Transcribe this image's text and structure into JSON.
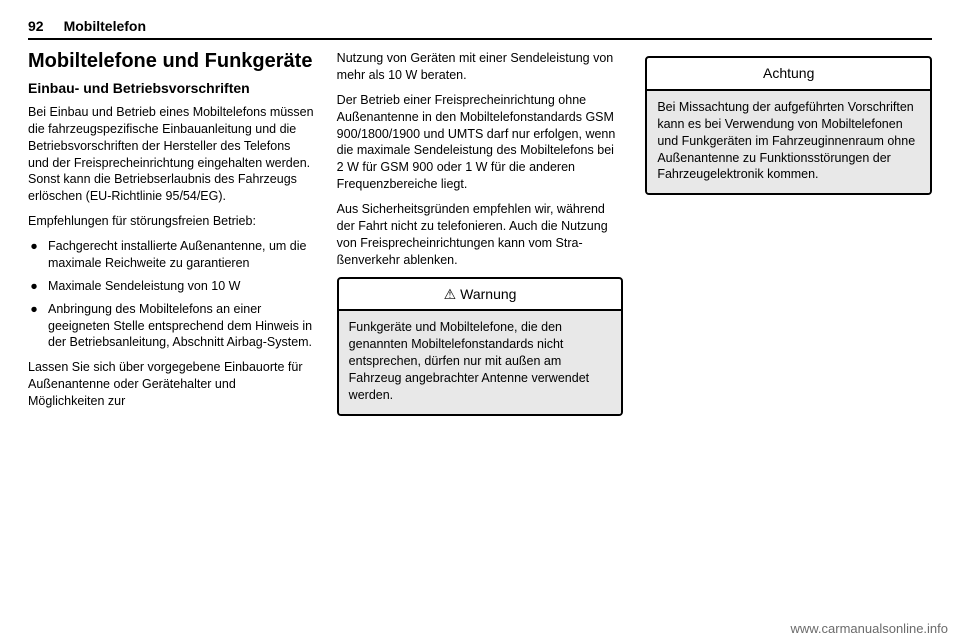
{
  "header": {
    "page_number": "92",
    "section": "Mobiltelefon"
  },
  "col1": {
    "title": "Mobiltelefone und Funkgeräte",
    "subtitle": "Einbau- und Betriebsvorschriften",
    "p1": "Bei Einbau und Betrieb eines Mobil­telefons müssen die fahrzeugspezifi­sche Einbauanleitung und die Betriebsvorschriften der Hersteller des Telefons und der Freisprechein­richtung eingehalten werden. Sonst kann die Betriebserlaubnis des Fahr­zeugs erlöschen (EU-Richtlinie 95/54/EG).",
    "p2": "Empfehlungen für störungsfreien Betrieb:",
    "bullets": [
      "Fachgerecht installierte Außen­antenne, um die maximale Reichweite zu garantieren",
      "Maximale Sendeleistung von 10 W",
      "Anbringung des Mobiltelefons an einer geeigneten Stelle entspre­chend dem Hinweis in der Betriebsanleitung, Abschnitt Airbag-System."
    ],
    "p3": "Lassen Sie sich über vorgegebene Einbauorte für Außenantenne oder Gerätehalter und Möglichkeiten zur"
  },
  "col2": {
    "p1": "Nutzung von Geräten mit einer Sendeleistung von mehr als 10 W beraten.",
    "p2": "Der Betrieb einer Freisprecheinrich­tung ohne Außenantenne in den Mobiltelefonstandards GSM 900/1800/1900 und UMTS darf nur erfolgen, wenn die maximale Sende­leistung des Mobiltelefons bei 2 W für GSM 900 oder 1 W für die anderen Frequenzbereiche liegt.",
    "p3": "Aus Sicherheitsgründen empfehlen wir, während der Fahrt nicht zu tele­fonieren. Auch die Nutzung von Frei­sprecheinrichtungen kann vom Stra­ßenverkehr ablenken.",
    "warn_title": "Warnung",
    "warn_body": "Funkgeräte und Mobiltelefone, die den genannten Mobiltelefon­standards nicht entsprechen, dürfen nur mit außen am Fahrzeug angebrachter Antenne verwendet werden."
  },
  "col3": {
    "caution_title": "Achtung",
    "caution_body": "Bei Missachtung der aufgeführten Vorschriften kann es bei Verwen­dung von Mobiltelefonen und Funkgeräten im Fahrzeuginnen­raum ohne Außenantenne zu Funktionsstörungen der Fahr­zeugelektronik kommen."
  },
  "watermark": "www.carmanualsonline.info"
}
